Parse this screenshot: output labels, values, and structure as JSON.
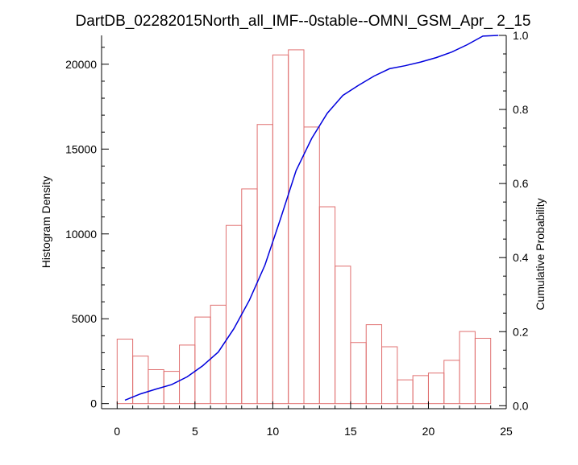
{
  "chart_data": {
    "type": "bar",
    "title": "DartDB_02282015North_all_IMF--0stable--OMNI_GSM_Apr_ 2_15",
    "xlabel": "",
    "ylabel": "Histogram Density",
    "y2label": "Cumulative Probability",
    "xlim": [
      -1,
      25
    ],
    "ylim": [
      -300,
      21700
    ],
    "y2lim": [
      -0.008,
      1.0
    ],
    "xticks": [
      "0",
      "5",
      "10",
      "15",
      "20",
      "25"
    ],
    "yticks": [
      "0",
      "5000",
      "10000",
      "15000",
      "20000"
    ],
    "y2ticks": [
      "0.0",
      "0.2",
      "0.4",
      "0.6",
      "0.8",
      "1.0"
    ],
    "grid": false,
    "bin_width": 1,
    "colors": {
      "bars": "#e07070",
      "cumulative": "#0000dd",
      "axes": "#000000"
    },
    "series": [
      {
        "kind": "histogram",
        "bin_left": [
          0,
          1,
          2,
          3,
          4,
          5,
          6,
          7,
          8,
          9,
          10,
          11,
          12,
          13,
          14,
          15,
          16,
          17,
          18,
          19,
          20,
          21,
          22,
          23
        ],
        "values": [
          3800,
          2800,
          2000,
          1900,
          3450,
          5100,
          5800,
          10500,
          12650,
          16450,
          20550,
          20850,
          16300,
          11600,
          8100,
          3600,
          4650,
          3350,
          1400,
          1650,
          1800,
          2550,
          4250,
          3850
        ]
      },
      {
        "kind": "cumulative",
        "x": [
          0.5,
          1.5,
          2.5,
          3.5,
          4.5,
          5.5,
          6.5,
          7.5,
          8.5,
          9.5,
          10.5,
          11.5,
          12.5,
          13.5,
          14.5,
          15.5,
          16.5,
          17.5,
          18.5,
          19.5,
          20.5,
          21.5,
          22.5,
          23.5,
          24.5
        ],
        "values": [
          0.015,
          0.032,
          0.045,
          0.057,
          0.078,
          0.108,
          0.145,
          0.208,
          0.285,
          0.38,
          0.505,
          0.635,
          0.722,
          0.79,
          0.838,
          0.865,
          0.89,
          0.91,
          0.918,
          0.928,
          0.94,
          0.955,
          0.975,
          0.998,
          1.0
        ]
      }
    ]
  }
}
